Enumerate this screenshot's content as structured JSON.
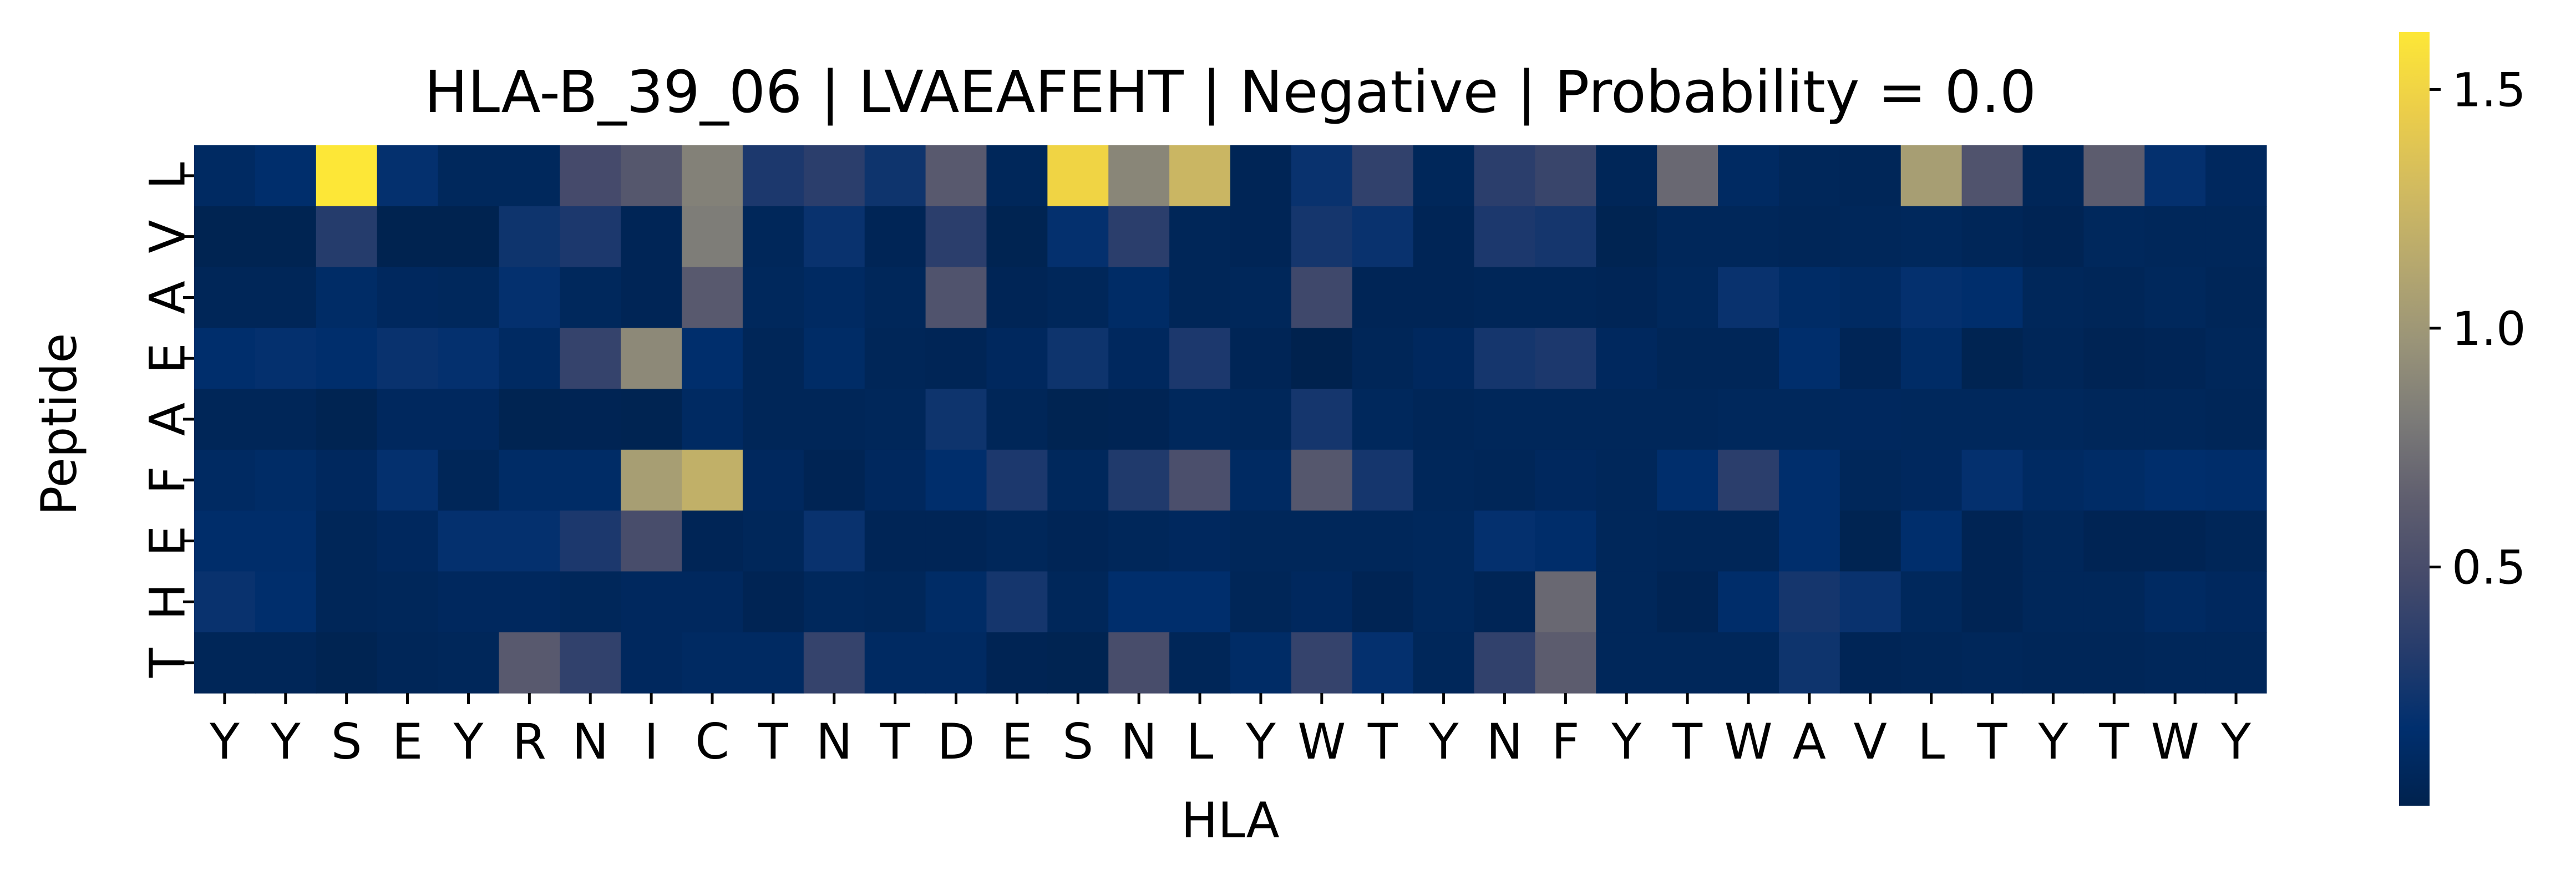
{
  "chart_data": {
    "type": "heatmap",
    "title": "HLA-B_39_06 | LVAEAFEHT | Negative | Probability = 0.0",
    "xlabel": "HLA",
    "ylabel": "Peptide",
    "x_categories": [
      "Y",
      "Y",
      "S",
      "E",
      "Y",
      "R",
      "N",
      "I",
      "C",
      "T",
      "N",
      "T",
      "D",
      "E",
      "S",
      "N",
      "L",
      "Y",
      "W",
      "T",
      "Y",
      "N",
      "F",
      "Y",
      "T",
      "W",
      "A",
      "V",
      "L",
      "T",
      "Y",
      "T",
      "W",
      "Y"
    ],
    "y_categories": [
      "L",
      "V",
      "A",
      "E",
      "A",
      "F",
      "E",
      "H",
      "T"
    ],
    "colormap": "cividis",
    "value_range": [
      0.0,
      1.62
    ],
    "colorbar_ticks": [
      0.5,
      1.0,
      1.5
    ],
    "colorbar_tick_labels": [
      "0.5",
      "1.0",
      "1.5"
    ],
    "values": [
      [
        0.1,
        0.15,
        1.62,
        0.18,
        0.07,
        0.07,
        0.48,
        0.58,
        0.85,
        0.28,
        0.35,
        0.22,
        0.6,
        0.06,
        1.5,
        0.88,
        1.25,
        0.04,
        0.2,
        0.38,
        0.06,
        0.35,
        0.42,
        0.05,
        0.7,
        0.1,
        0.06,
        0.05,
        1.05,
        0.55,
        0.05,
        0.62,
        0.18,
        0.08
      ],
      [
        0.02,
        0.02,
        0.32,
        0.01,
        0.01,
        0.22,
        0.28,
        0.04,
        0.82,
        0.06,
        0.2,
        0.04,
        0.35,
        0.02,
        0.18,
        0.35,
        0.05,
        0.04,
        0.25,
        0.2,
        0.04,
        0.28,
        0.25,
        0.02,
        0.06,
        0.06,
        0.05,
        0.06,
        0.07,
        0.05,
        0.03,
        0.07,
        0.06,
        0.06
      ],
      [
        0.05,
        0.05,
        0.12,
        0.08,
        0.07,
        0.18,
        0.07,
        0.04,
        0.6,
        0.07,
        0.1,
        0.06,
        0.55,
        0.04,
        0.06,
        0.12,
        0.05,
        0.06,
        0.45,
        0.04,
        0.04,
        0.05,
        0.05,
        0.04,
        0.07,
        0.2,
        0.12,
        0.1,
        0.18,
        0.15,
        0.06,
        0.05,
        0.07,
        0.05
      ],
      [
        0.15,
        0.18,
        0.15,
        0.2,
        0.18,
        0.1,
        0.4,
        0.9,
        0.15,
        0.05,
        0.12,
        0.05,
        0.04,
        0.08,
        0.22,
        0.08,
        0.28,
        0.04,
        0.0,
        0.05,
        0.08,
        0.25,
        0.28,
        0.08,
        0.05,
        0.05,
        0.15,
        0.04,
        0.12,
        0.02,
        0.05,
        0.03,
        0.04,
        0.06
      ],
      [
        0.05,
        0.05,
        0.02,
        0.08,
        0.08,
        0.02,
        0.03,
        0.02,
        0.1,
        0.05,
        0.05,
        0.06,
        0.22,
        0.05,
        0.02,
        0.03,
        0.07,
        0.06,
        0.25,
        0.07,
        0.05,
        0.06,
        0.06,
        0.06,
        0.06,
        0.07,
        0.07,
        0.08,
        0.07,
        0.07,
        0.07,
        0.06,
        0.06,
        0.05
      ],
      [
        0.1,
        0.12,
        0.08,
        0.18,
        0.05,
        0.12,
        0.12,
        1.05,
        1.2,
        0.08,
        0.03,
        0.08,
        0.15,
        0.28,
        0.07,
        0.3,
        0.52,
        0.1,
        0.58,
        0.25,
        0.06,
        0.05,
        0.08,
        0.06,
        0.15,
        0.35,
        0.15,
        0.06,
        0.08,
        0.18,
        0.1,
        0.12,
        0.15,
        0.14
      ],
      [
        0.14,
        0.14,
        0.05,
        0.08,
        0.18,
        0.18,
        0.28,
        0.5,
        0.04,
        0.06,
        0.2,
        0.04,
        0.04,
        0.06,
        0.04,
        0.06,
        0.08,
        0.06,
        0.06,
        0.06,
        0.07,
        0.18,
        0.14,
        0.06,
        0.05,
        0.05,
        0.15,
        0.02,
        0.15,
        0.03,
        0.06,
        0.03,
        0.03,
        0.05
      ],
      [
        0.2,
        0.15,
        0.05,
        0.06,
        0.08,
        0.08,
        0.06,
        0.08,
        0.08,
        0.03,
        0.07,
        0.06,
        0.12,
        0.25,
        0.06,
        0.15,
        0.15,
        0.05,
        0.08,
        0.03,
        0.07,
        0.04,
        0.7,
        0.06,
        0.03,
        0.14,
        0.25,
        0.2,
        0.07,
        0.03,
        0.06,
        0.06,
        0.1,
        0.08
      ],
      [
        0.05,
        0.05,
        0.02,
        0.05,
        0.06,
        0.6,
        0.38,
        0.08,
        0.1,
        0.1,
        0.4,
        0.1,
        0.1,
        0.03,
        0.02,
        0.5,
        0.05,
        0.12,
        0.4,
        0.18,
        0.06,
        0.38,
        0.62,
        0.06,
        0.06,
        0.06,
        0.22,
        0.04,
        0.05,
        0.06,
        0.05,
        0.05,
        0.06,
        0.06
      ]
    ]
  }
}
